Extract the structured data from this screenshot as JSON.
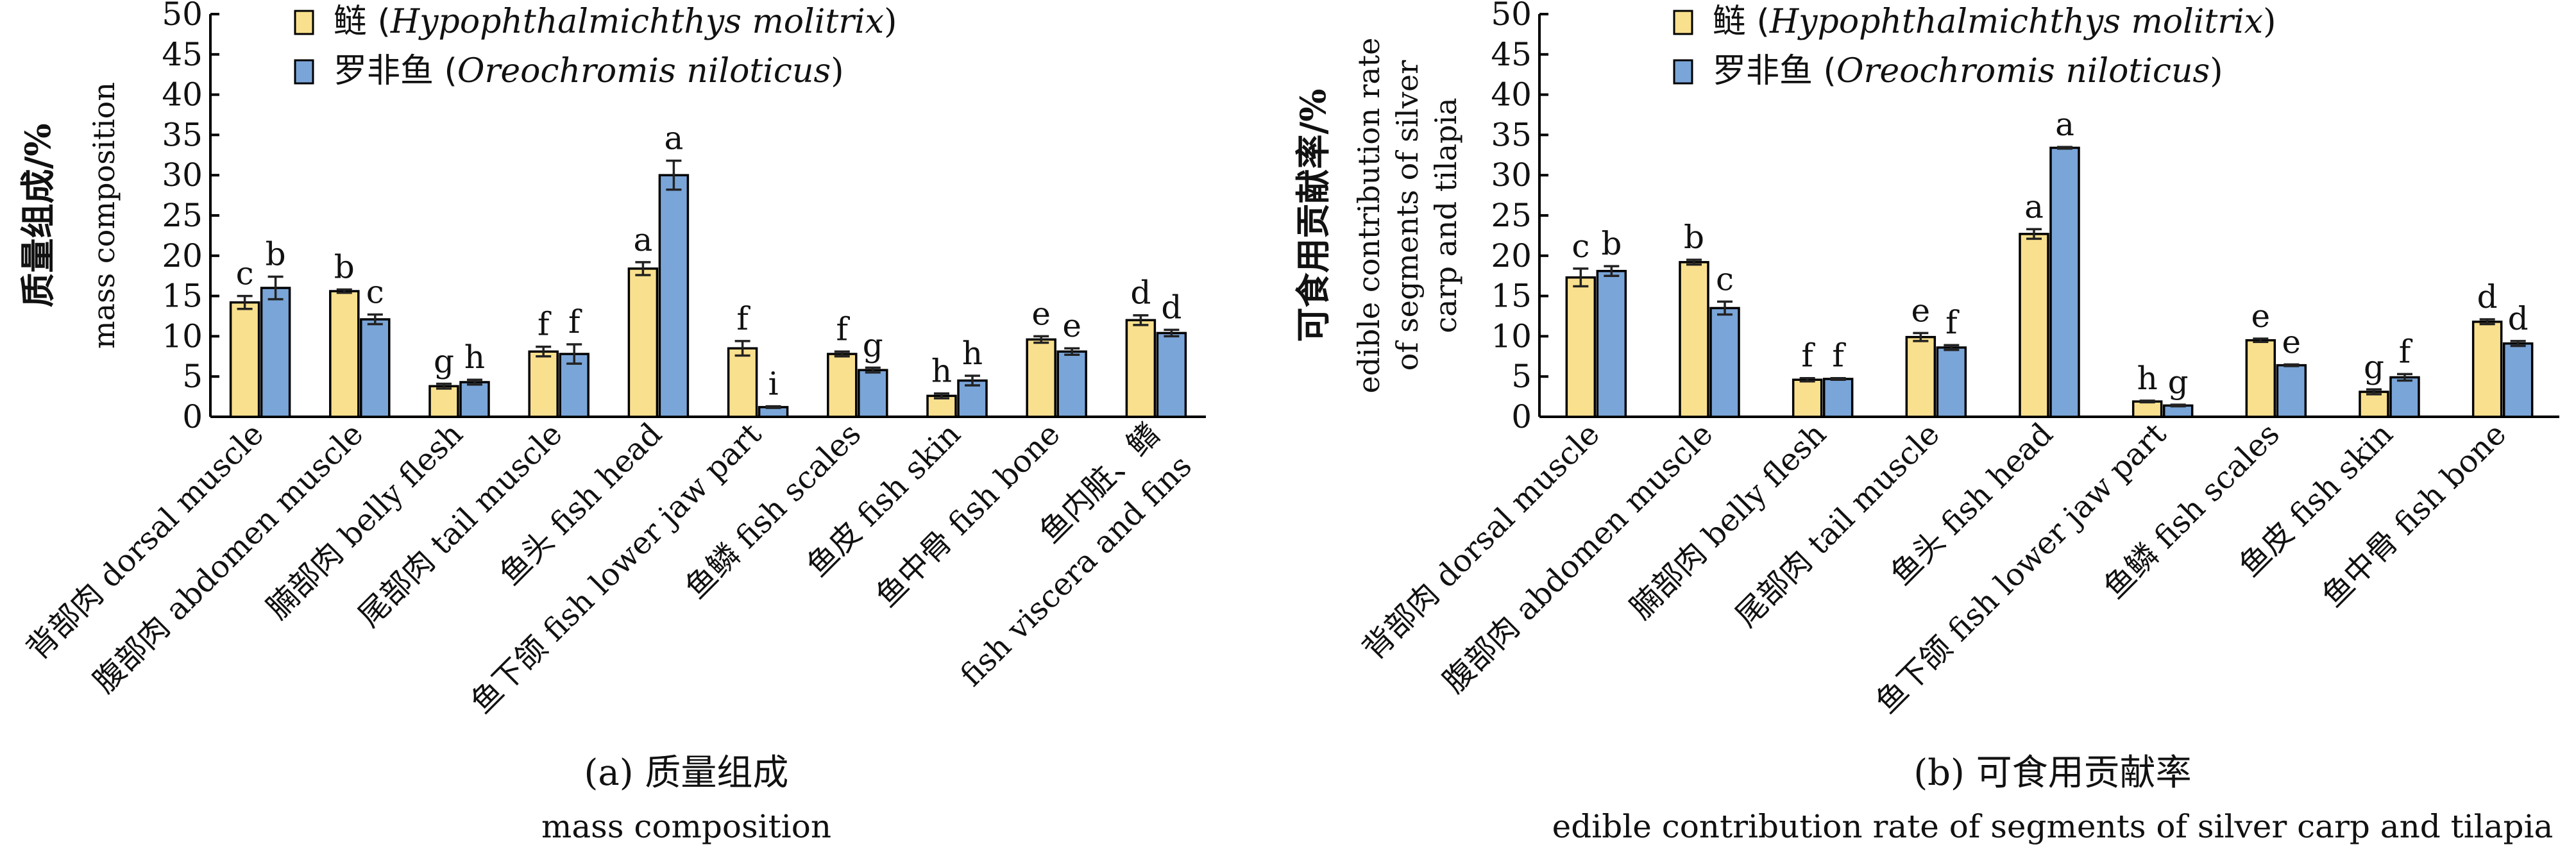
{
  "chart_data": [
    {
      "type": "bar",
      "panel_label": "(a) 质量组成",
      "panel_sublabel": "mass composition",
      "ylabel_cn": "质量组成/%",
      "ylabel_en": "mass composition",
      "ylim": [
        0,
        50
      ],
      "ytick_step": 5,
      "categories": [
        "背部肉 dorsal muscle",
        "腹部肉 abdomen muscle",
        "腩部肉 belly flesh",
        "尾部肉 tail muscle",
        "鱼头 fish head",
        "鱼下颌 fish lower jaw part",
        "鱼鳞 fish scales",
        "鱼皮 fish skin",
        "鱼中骨 fish bone",
        "鱼内脏、鳍 fish viscera and fins"
      ],
      "legend_placement": "top-center",
      "series": [
        {
          "name": "鲢 (Hypophthalmichthys molitrix)",
          "name_cn": "鲢",
          "name_latin": "Hypophthalmichthys molitrix",
          "color": "#f9e08e",
          "values": [
            14.2,
            15.6,
            3.8,
            8.1,
            18.4,
            8.5,
            7.8,
            2.6,
            9.6,
            12.0
          ],
          "errors": [
            0.8,
            0.2,
            0.3,
            0.6,
            0.8,
            0.9,
            0.3,
            0.3,
            0.4,
            0.6
          ],
          "letters": [
            "c",
            "b",
            "g",
            "f",
            "a",
            "f",
            "f",
            "h",
            "e",
            "d"
          ]
        },
        {
          "name": "罗非鱼 (Oreochromis niloticus)",
          "name_cn": "罗非鱼",
          "name_latin": "Oreochromis niloticus",
          "color": "#7aa5d8",
          "values": [
            16.0,
            12.1,
            4.3,
            7.8,
            30.0,
            1.2,
            5.8,
            4.5,
            8.1,
            10.4
          ],
          "errors": [
            1.4,
            0.6,
            0.3,
            1.2,
            1.8,
            0.1,
            0.3,
            0.6,
            0.4,
            0.4
          ],
          "letters": [
            "b",
            "c",
            "h",
            "f",
            "a",
            "i",
            "g",
            "h",
            "e",
            "d"
          ]
        }
      ]
    },
    {
      "type": "bar",
      "panel_label": "(b) 可食用贡献率",
      "panel_sublabel": "edible contribution rate of segments of silver carp and tilapia",
      "ylabel_cn": "可食用贡献率/%",
      "ylabel_en_lines": [
        "edible contribution rate",
        "of segments of silver",
        "carp and tilapia"
      ],
      "ylim": [
        0,
        50
      ],
      "ytick_step": 5,
      "categories": [
        "背部肉 dorsal muscle",
        "腹部肉 abdomen muscle",
        "腩部肉 belly flesh",
        "尾部肉 tail muscle",
        "鱼头 fish head",
        "鱼下颌 fish lower jaw part",
        "鱼鳞 fish scales",
        "鱼皮 fish skin",
        "鱼中骨 fish bone"
      ],
      "legend_placement": "top-center",
      "series": [
        {
          "name": "鲢 (Hypophthalmichthys molitrix)",
          "name_cn": "鲢",
          "name_latin": "Hypophthalmichthys molitrix",
          "color": "#f9e08e",
          "values": [
            17.3,
            19.2,
            4.6,
            9.9,
            22.7,
            1.9,
            9.5,
            3.1,
            11.8
          ],
          "errors": [
            1.1,
            0.3,
            0.2,
            0.5,
            0.6,
            0.1,
            0.2,
            0.3,
            0.3
          ],
          "letters": [
            "c",
            "b",
            "f",
            "e",
            "a",
            "h",
            "e",
            "g",
            "d"
          ]
        },
        {
          "name": "罗非鱼 (Oreochromis niloticus)",
          "name_cn": "罗非鱼",
          "name_latin": "Oreochromis niloticus",
          "color": "#7aa5d8",
          "values": [
            18.1,
            13.5,
            4.7,
            8.6,
            33.4,
            1.4,
            6.4,
            4.9,
            9.1
          ],
          "errors": [
            0.6,
            0.8,
            0.1,
            0.3,
            0.1,
            0.1,
            0.1,
            0.4,
            0.3
          ],
          "letters": [
            "b",
            "c",
            "f",
            "f",
            "a",
            "g",
            "e",
            "f",
            "d"
          ]
        }
      ]
    }
  ]
}
